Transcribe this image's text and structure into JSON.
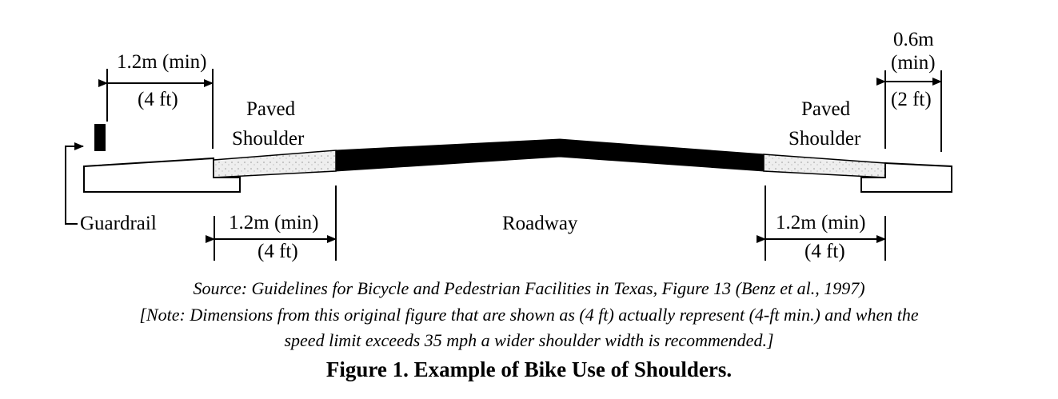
{
  "diagram": {
    "left_dim": {
      "value": "1.2m (min)",
      "ft": "(4 ft)"
    },
    "right_dim": {
      "value_top": "0.6m",
      "value_mid": "(min)",
      "ft": "(2 ft)"
    },
    "left_shoulder_label": {
      "line1": "Paved",
      "line2": "Shoulder"
    },
    "right_shoulder_label": {
      "line1": "Paved",
      "line2": "Shoulder"
    },
    "guardrail_label": "Guardrail",
    "roadway_label": "Roadway",
    "bottom_left_dim": {
      "value": "1.2m (min)",
      "ft": "(4 ft)"
    },
    "bottom_right_dim": {
      "value": "1.2m (min)",
      "ft": "(4 ft)"
    }
  },
  "caption": {
    "source": "Source: Guidelines for Bicycle and Pedestrian Facilities in Texas, Figure 13 (Benz et al., 1997)",
    "note_line1": "[Note: Dimensions from this original figure that are shown as (4 ft) actually represent (4-ft min.) and when the",
    "note_line2": "speed limit exceeds 35 mph a wider shoulder width is recommended.]",
    "figure_title": "Figure 1. Example of Bike Use of Shoulders."
  },
  "colors": {
    "ink": "#000000",
    "shoulder_fill": "#e8e8e8",
    "background": "#ffffff"
  }
}
